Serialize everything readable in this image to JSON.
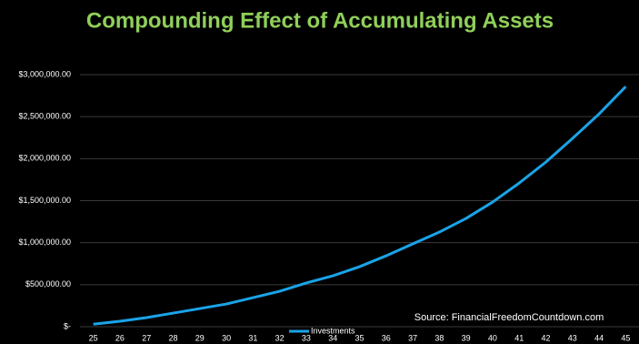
{
  "chart_data": {
    "type": "line",
    "title": "Compounding Effect of Accumulating Assets",
    "annotation": "Source: FinancialFreedomCountdown.com",
    "categories": [
      "25",
      "26",
      "27",
      "28",
      "29",
      "30",
      "31",
      "32",
      "33",
      "34",
      "35",
      "36",
      "37",
      "38",
      "39",
      "40",
      "41",
      "42",
      "43",
      "44",
      "45"
    ],
    "series": [
      {
        "name": "Investments",
        "color": "#1aa3e8",
        "values": [
          30000,
          65000,
          108000,
          162000,
          216000,
          270000,
          346000,
          422000,
          520000,
          606000,
          714000,
          844000,
          985000,
          1126000,
          1288000,
          1483000,
          1710000,
          1959000,
          2240000,
          2532000,
          2857000
        ]
      }
    ],
    "ylim": [
      0,
      3000000
    ],
    "yticks": [
      {
        "value": 0,
        "label": "$-"
      },
      {
        "value": 500000,
        "label": "$500,000.00"
      },
      {
        "value": 1000000,
        "label": "$1,000,000.00"
      },
      {
        "value": 1500000,
        "label": "$1,500,000.00"
      },
      {
        "value": 2000000,
        "label": "$2,000,000.00"
      },
      {
        "value": 2500000,
        "label": "$2,500,000.00"
      },
      {
        "value": 3000000,
        "label": "$3,000,000.00"
      }
    ],
    "grid": true,
    "legend": "bottom"
  }
}
